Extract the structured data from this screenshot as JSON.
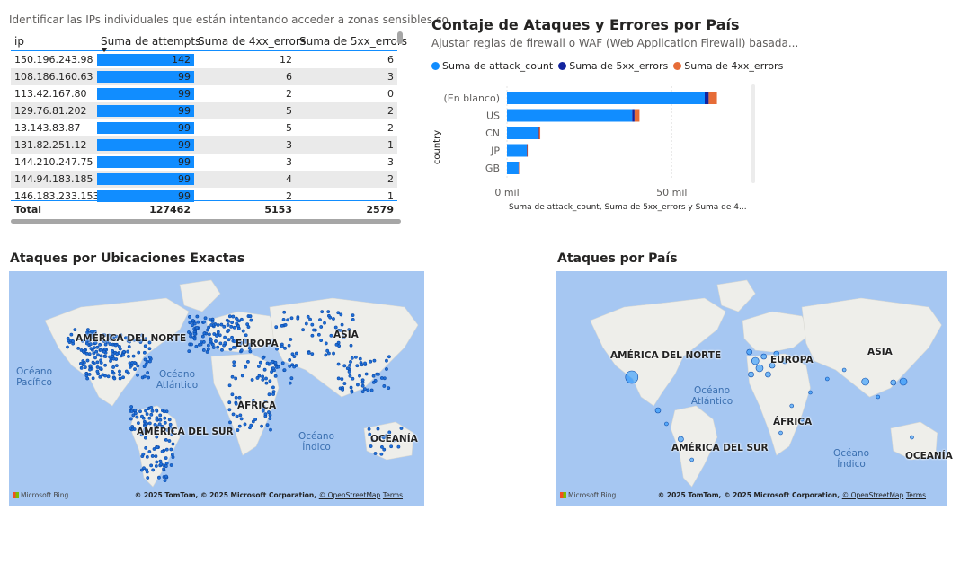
{
  "table": {
    "subtitle": "Identificar las IPs individuales que están intentando acceder a zonas sensibles co...",
    "columns": [
      "ip",
      "Suma de attempts",
      "Suma de 4xx_errors",
      "Suma de 5xx_errors"
    ],
    "rows": [
      [
        "150.196.243.98",
        "142",
        "12",
        "6"
      ],
      [
        "108.186.160.63",
        "99",
        "6",
        "3"
      ],
      [
        "113.42.167.80",
        "99",
        "2",
        "0"
      ],
      [
        "129.76.81.202",
        "99",
        "5",
        "2"
      ],
      [
        "13.143.83.87",
        "99",
        "5",
        "2"
      ],
      [
        "131.82.251.12",
        "99",
        "3",
        "1"
      ],
      [
        "144.210.247.75",
        "99",
        "3",
        "3"
      ],
      [
        "144.94.183.185",
        "99",
        "4",
        "2"
      ],
      [
        "146.183.233.153",
        "99",
        "2",
        "1"
      ]
    ],
    "total": [
      "Total",
      "127462",
      "5153",
      "2579"
    ]
  },
  "bar_chart": {
    "title": "Contaje de Ataques y Errores por País",
    "subtitle": "Ajustar reglas de firewall o WAF (Web Application Firewall) basada...",
    "xaxis_label": "Suma de attack_count, Suma de 5xx_errors y Suma de 4...",
    "yaxis_label": "country"
  },
  "chart_data": {
    "type": "bar",
    "orientation": "horizontal",
    "stacked": true,
    "categories": [
      "(En blanco)",
      "US",
      "CN",
      "JP",
      "GB"
    ],
    "series": [
      {
        "name": "Suma de attack_count",
        "color": "#118dff",
        "values": [
          60000,
          38000,
          9500,
          6000,
          3500
        ]
      },
      {
        "name": "Suma de 5xx_errors",
        "color": "#12239e",
        "values": [
          1200,
          700,
          200,
          100,
          60
        ]
      },
      {
        "name": "Suma de 4xx_errors",
        "color": "#e66c37",
        "values": [
          2500,
          1500,
          400,
          200,
          120
        ]
      }
    ],
    "xticks": [
      "0 mil",
      "50 mil"
    ],
    "xtick_values": [
      0,
      50000
    ],
    "xlim": [
      0,
      75000
    ],
    "legend_position": "top-left"
  },
  "map_exact": {
    "title": "Ataques por Ubicaciones Exactas",
    "labels": [
      "AMÉRICA DEL NORTE",
      "EUROPA",
      "ASIA",
      "ÁFRICA",
      "AMÉRICA DEL SUR",
      "OCEANÍA"
    ],
    "oceans": [
      "Océano Pacífico",
      "Océano Atlántico",
      "Océano Índico"
    ],
    "bing": "Microsoft Bing",
    "copyright": "© 2025 TomTom, © 2025 Microsoft Corporation,",
    "osm": "© OpenStreetMap",
    "terms": "Terms"
  },
  "map_country": {
    "title": "Ataques por País",
    "labels": [
      "AMÉRICA DEL NORTE",
      "EUROPA",
      "ASIA",
      "ÁFRICA",
      "AMÉRICA DEL SUR",
      "OCEANÍA"
    ],
    "oceans": [
      "Océano Atlántico",
      "Océano Índico"
    ],
    "bing": "Microsoft Bing",
    "copyright": "© 2025 TomTom, © 2025 Microsoft Corporation,",
    "osm": "© OpenStreetMap",
    "terms": "Terms"
  }
}
